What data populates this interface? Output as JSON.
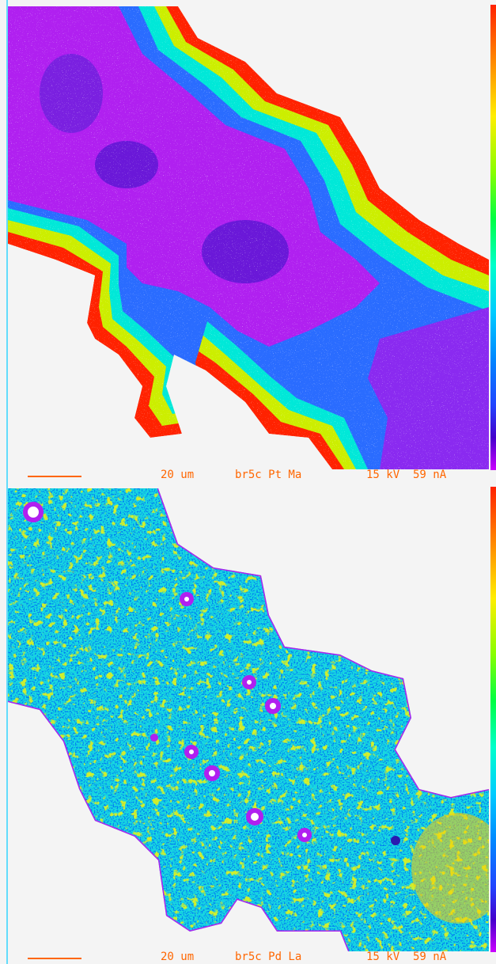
{
  "panels": [
    {
      "scale_label": "20 um",
      "sample_label": "br5c Pt Ma",
      "conditions_label": "15 kV  59 nA"
    },
    {
      "scale_label": "20 um",
      "sample_label": "br5c Pd La",
      "conditions_label": "15 kV  59 nA"
    }
  ],
  "colors": {
    "background": "#f4f4f4",
    "caption": "#ff6600",
    "high": "#ff2200",
    "mid": "#ffee00",
    "low_mid": "#00ffcc",
    "low": "#0088ff",
    "lowest": "#cc00ff"
  }
}
